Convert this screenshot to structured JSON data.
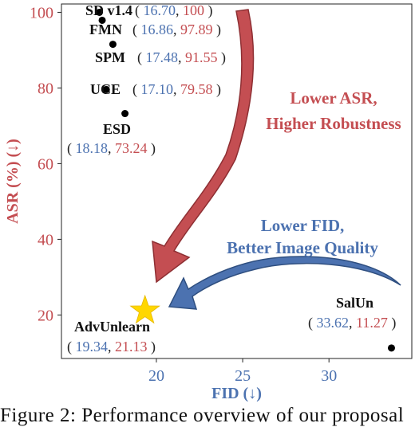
{
  "chart_data": {
    "type": "scatter",
    "xlabel": "FID (↓)",
    "ylabel": "ASR (%) (↓)",
    "xlim": [
      14.5,
      34.8
    ],
    "ylim": [
      8.5,
      102.2
    ],
    "x_ticks": [
      20,
      25,
      30
    ],
    "y_ticks": [
      20,
      40,
      60,
      80,
      100
    ],
    "grid": false,
    "points": [
      {
        "name": "SD v1.4",
        "x": 16.7,
        "y": 100,
        "x_text": "16.70",
        "y_text": "100"
      },
      {
        "name": "FMN",
        "x": 16.86,
        "y": 97.89,
        "x_text": "16.86",
        "y_text": "97.89"
      },
      {
        "name": "SPM",
        "x": 17.48,
        "y": 91.55,
        "x_text": "17.48",
        "y_text": "91.55"
      },
      {
        "name": "UCE",
        "x": 17.1,
        "y": 79.58,
        "x_text": "17.10",
        "y_text": "79.58"
      },
      {
        "name": "ESD",
        "x": 18.18,
        "y": 73.24,
        "x_text": "18.18",
        "y_text": "73.24"
      },
      {
        "name": "SalUn",
        "x": 33.62,
        "y": 11.27,
        "x_text": "33.62",
        "y_text": "11.27"
      },
      {
        "name": "AdvUnlearn",
        "x": 19.34,
        "y": 21.13,
        "x_text": "19.34",
        "y_text": "21.13",
        "marker": "star"
      }
    ],
    "annotations": [
      {
        "id": "asr",
        "lines": [
          "Lower ASR,",
          "Higher Robustness"
        ],
        "color": "#c44e52"
      },
      {
        "id": "fid",
        "lines": [
          "Lower FID,",
          "Better Image Quality"
        ],
        "color": "#4c72b0"
      }
    ],
    "colors": {
      "x_accent": "#4c72b0",
      "y_accent": "#c44e52",
      "star": "#ffd700",
      "marker": "#000000"
    }
  },
  "caption": "Figure 2:  Performance overview of our proposal"
}
